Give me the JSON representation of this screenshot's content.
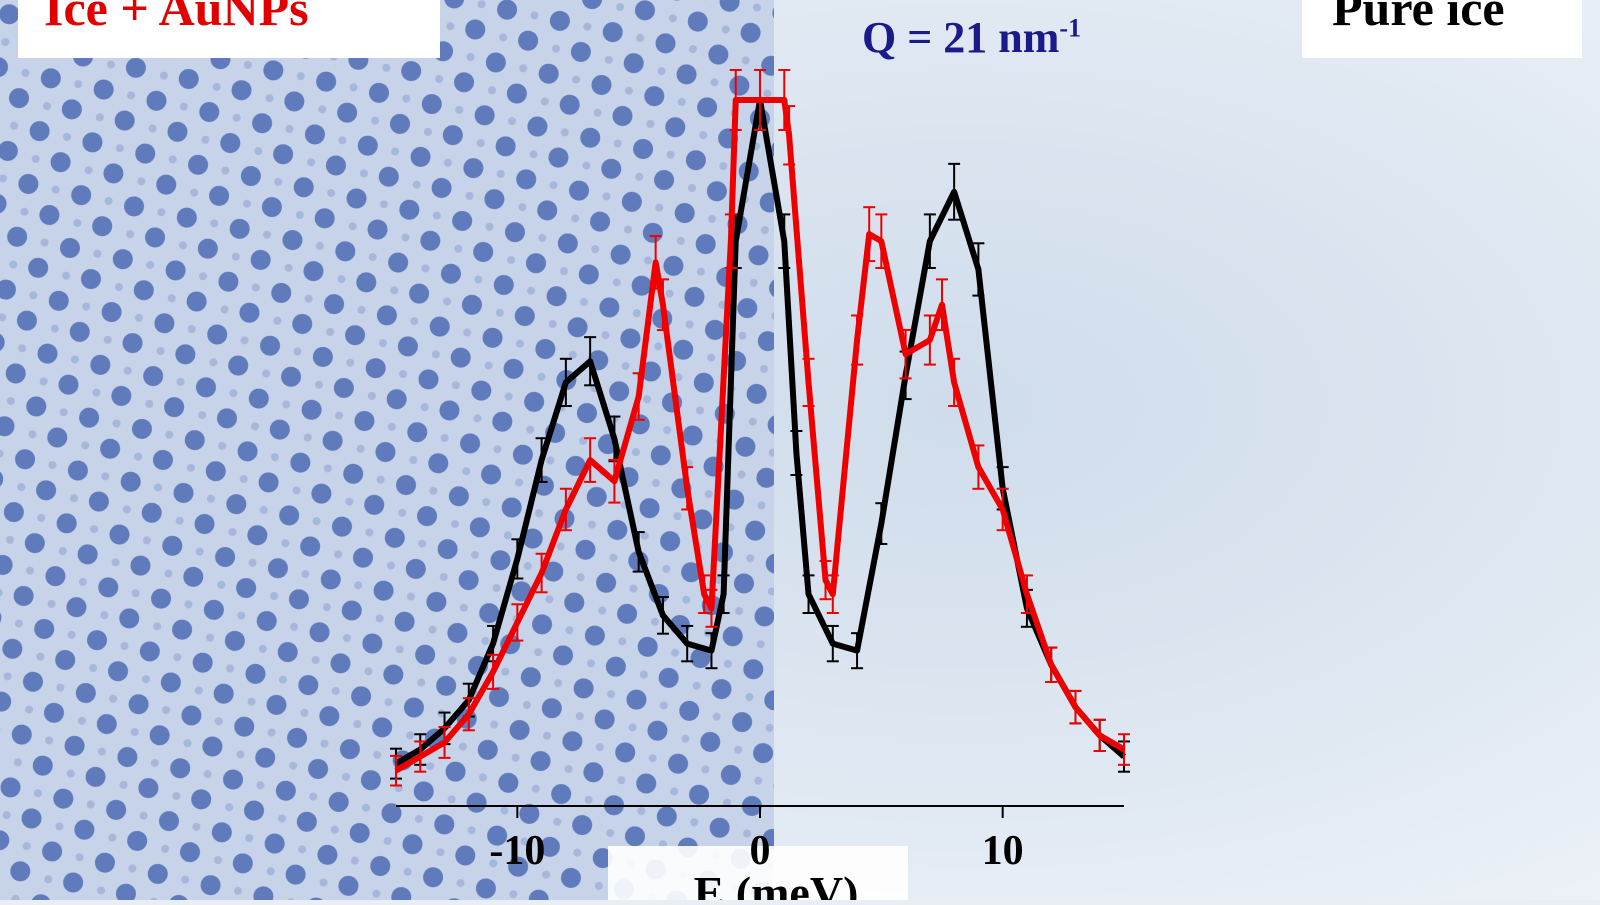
{
  "labels": {
    "left": "Ice + AuNPs",
    "right": "Pure ice",
    "q_prefix": "Q = 21 nm",
    "q_exp": "-1"
  },
  "colors": {
    "ice_aunp": "#ee0000",
    "pure_ice": "#000000",
    "q_text": "#1a1a8a"
  },
  "chart_data": {
    "type": "line",
    "xlabel": "E (meV)",
    "ylabel": "",
    "xlim": [
      -15,
      15
    ],
    "ylim": [
      0,
      1.0
    ],
    "xticks": [
      -10,
      0,
      10
    ],
    "xtick_labels": [
      "-10",
      "0",
      "10"
    ],
    "grid": false,
    "series": [
      {
        "color": "#000000",
        "x": [
          -15,
          -14,
          -13,
          -12,
          -11,
          -10,
          -9,
          -8,
          -7,
          -6,
          -5,
          -4,
          -3,
          -2,
          -1.5,
          -1,
          0,
          1,
          1.5,
          2,
          3,
          4,
          5,
          6,
          7,
          8,
          9,
          10,
          11,
          12,
          13,
          14,
          15
        ],
        "y": [
          0.06,
          0.08,
          0.11,
          0.15,
          0.23,
          0.35,
          0.49,
          0.6,
          0.63,
          0.52,
          0.36,
          0.27,
          0.23,
          0.22,
          0.3,
          0.8,
          1.0,
          0.8,
          0.5,
          0.3,
          0.23,
          0.22,
          0.4,
          0.61,
          0.8,
          0.87,
          0.76,
          0.45,
          0.28,
          0.2,
          0.14,
          0.1,
          0.07
        ]
      },
      {
        "color": "#ee0000",
        "x": [
          -15,
          -14,
          -13,
          -12,
          -11,
          -10,
          -9,
          -8,
          -7,
          -6,
          -5,
          -4.3,
          -4,
          -3,
          -2.3,
          -2,
          -1.2,
          -1,
          0,
          1,
          1.2,
          2,
          2.7,
          3,
          4,
          4.5,
          5,
          6,
          7,
          7.5,
          8,
          9,
          10,
          11,
          12,
          13,
          14,
          15
        ],
        "y": [
          0.05,
          0.07,
          0.09,
          0.13,
          0.19,
          0.26,
          0.33,
          0.42,
          0.49,
          0.46,
          0.58,
          0.77,
          0.71,
          0.45,
          0.3,
          0.28,
          0.8,
          1.0,
          1.0,
          1.0,
          0.95,
          0.6,
          0.32,
          0.3,
          0.66,
          0.81,
          0.8,
          0.64,
          0.66,
          0.71,
          0.6,
          0.48,
          0.42,
          0.3,
          0.2,
          0.14,
          0.1,
          0.08
        ]
      }
    ]
  }
}
